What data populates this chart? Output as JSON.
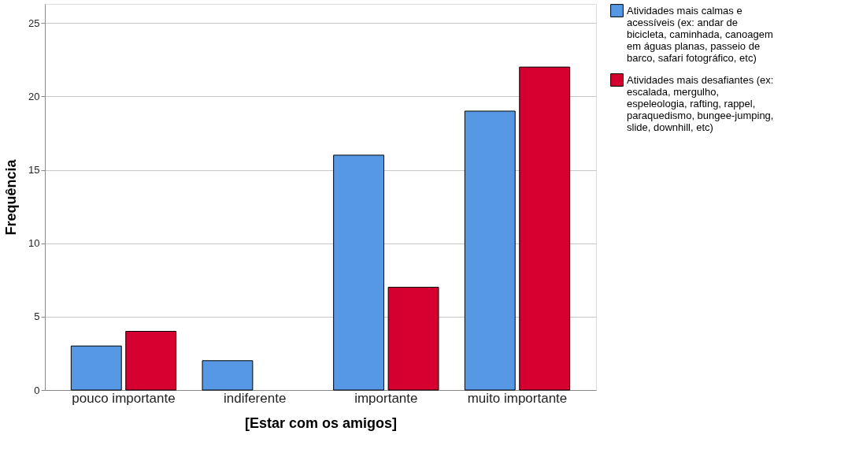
{
  "chart_data": {
    "type": "bar",
    "xlabel": "[Estar com os amigos]",
    "ylabel": "Frequência",
    "categories": [
      "pouco importante",
      "indiferente",
      "importante",
      "muito importante"
    ],
    "series": [
      {
        "name": "Atividades mais calmas e acessíveis (ex: andar de bicicleta, caminhada, canoagem em águas planas, passeio de barco, safari fotográfico, etc)",
        "color": "#5698e3",
        "values": [
          3,
          2,
          16,
          19
        ]
      },
      {
        "name": "Atividades mais desafiantes (ex: escalada, mergulho, espeleologia, rafting, rappel, paraquedismo, bungee-jumping, slide, downhill, etc)",
        "color": "#d5002f",
        "values": [
          4,
          null,
          7,
          22
        ]
      }
    ],
    "ylim": [
      0,
      26.3
    ],
    "yticks": [
      0,
      5,
      10,
      15,
      20,
      25
    ],
    "grid": "y",
    "legend": "right"
  }
}
